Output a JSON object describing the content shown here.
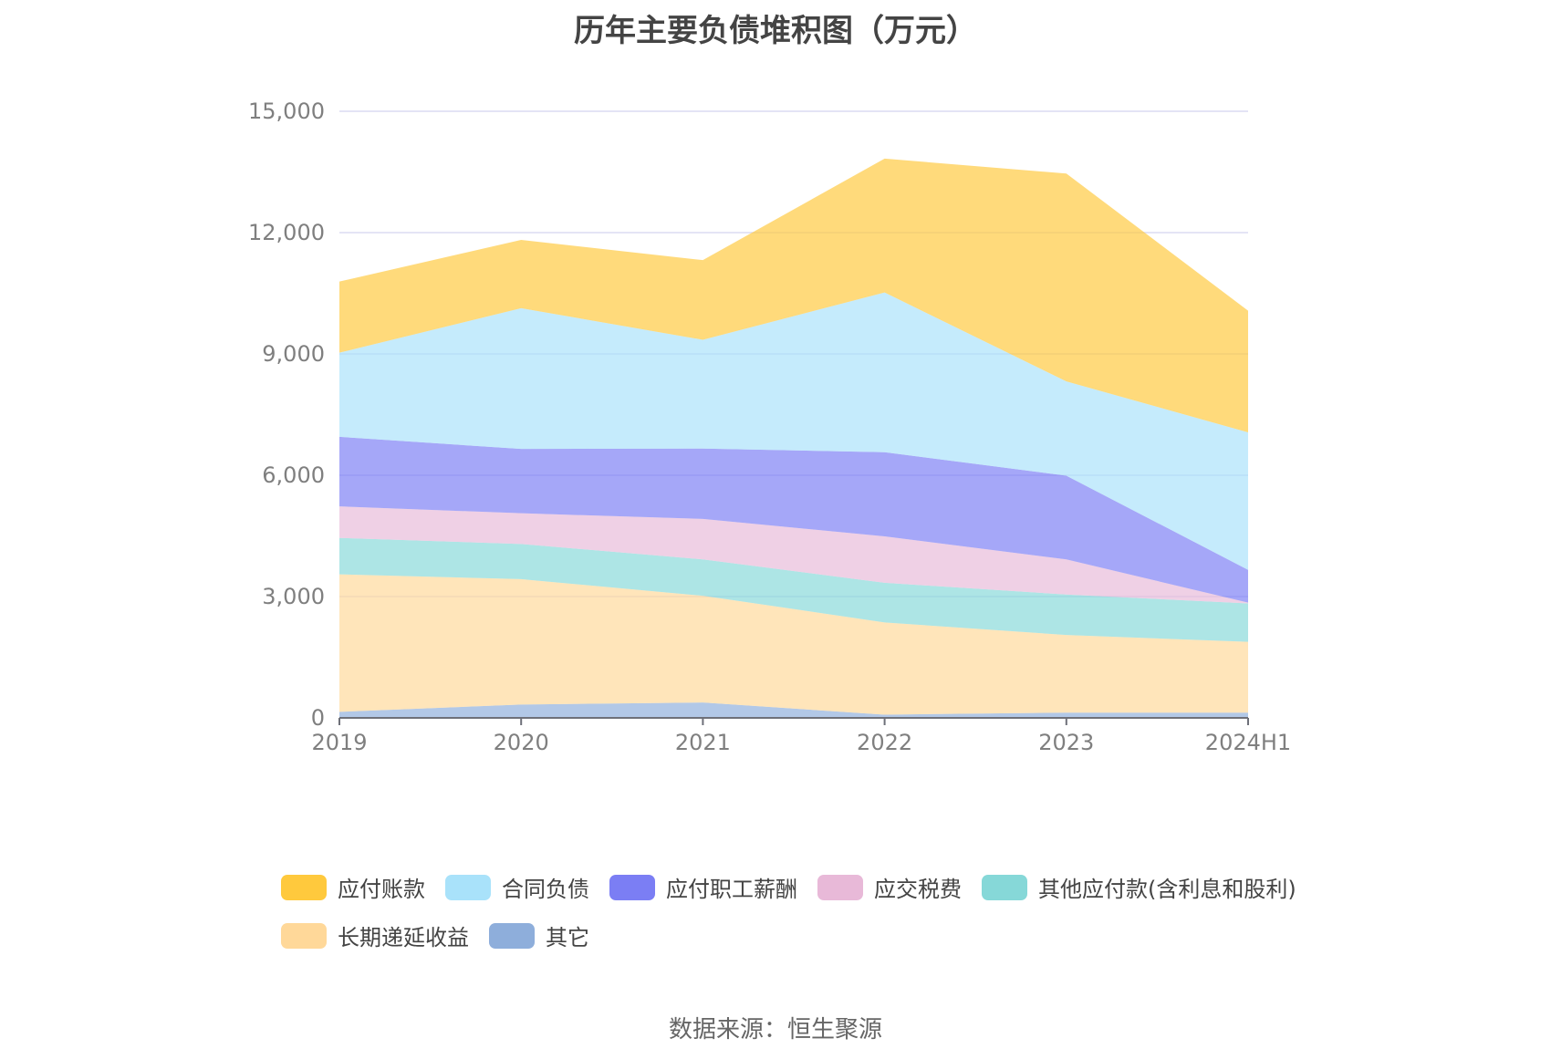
{
  "chart_data": {
    "type": "area",
    "stacked": true,
    "title": "历年主要负债堆积图（万元）",
    "categories": [
      "2019",
      "2020",
      "2021",
      "2022",
      "2023",
      "2024H1"
    ],
    "y_ticks": [
      "0",
      "3,000",
      "6,000",
      "9,000",
      "12,000",
      "15,000"
    ],
    "ylim": [
      0,
      15000
    ],
    "grid": "horizontal",
    "legend_position": "bottom",
    "series": [
      {
        "name": "其它",
        "color": "#8eaedb",
        "values": [
          150,
          330,
          380,
          80,
          130,
          130
        ]
      },
      {
        "name": "长期递延收益",
        "color": "#ffd899",
        "values": [
          3400,
          3100,
          2640,
          2280,
          1920,
          1750
        ]
      },
      {
        "name": "其他应付款(含利息和股利)",
        "color": "#86d8d8",
        "values": [
          900,
          870,
          900,
          980,
          1000,
          950
        ]
      },
      {
        "name": "应交税费",
        "color": "#e8b9d8",
        "values": [
          780,
          760,
          1000,
          1150,
          870,
          20
        ]
      },
      {
        "name": "应付职工薪酬",
        "color": "#7b7ef4",
        "values": [
          1720,
          1590,
          1740,
          2080,
          2070,
          810
        ]
      },
      {
        "name": "合同负债",
        "color": "#a9e2fa",
        "values": [
          2080,
          3480,
          2690,
          3950,
          2330,
          3400
        ]
      },
      {
        "name": "应付账款",
        "color": "#ffc93d",
        "values": [
          1760,
          1690,
          1970,
          3310,
          5140,
          3010
        ]
      }
    ],
    "legend_order": [
      "应付账款",
      "合同负债",
      "应付职工薪酬",
      "应交税费",
      "其他应付款(含利息和股利)",
      "长期递延收益",
      "其它"
    ]
  },
  "source": "数据来源：恒生聚源"
}
